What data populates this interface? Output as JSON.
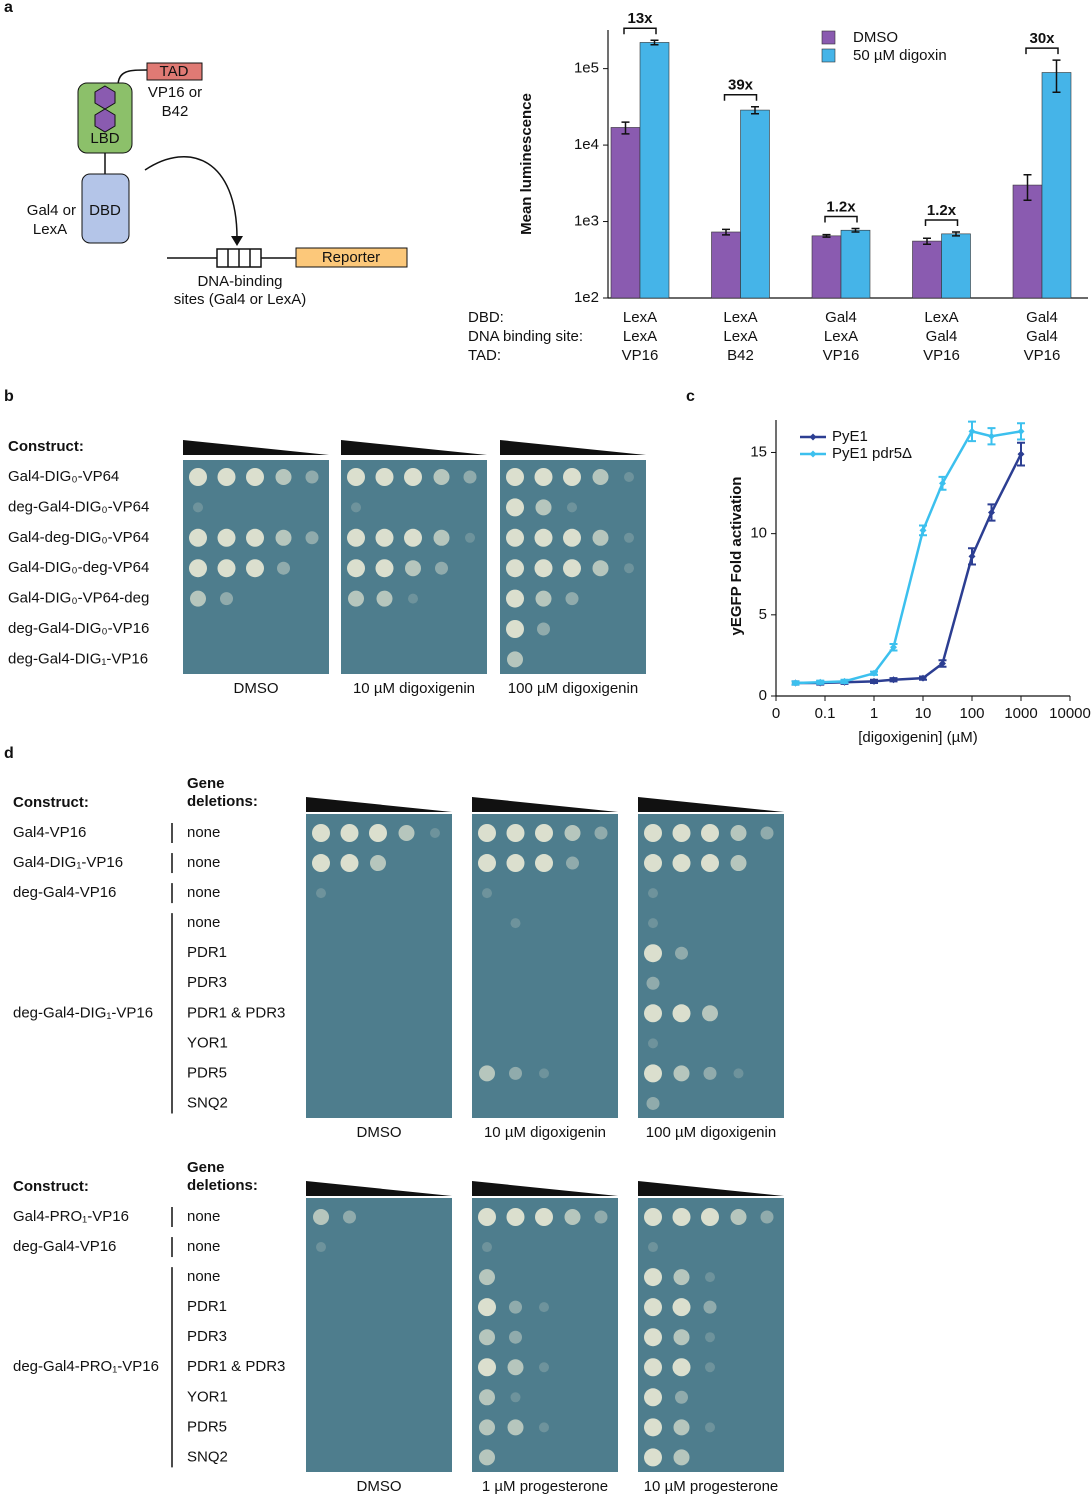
{
  "panel_a": {
    "letter": "a",
    "diagram": {
      "tad": "TAD",
      "tad_options": [
        "VP16 or",
        "B42"
      ],
      "lbd": "LBD",
      "dbd": "DBD",
      "dbd_options": [
        "Gal4 or",
        "LexA"
      ],
      "reporter": "Reporter",
      "sites": [
        "DNA-binding",
        "sites (Gal4 or LexA)"
      ]
    }
  },
  "chart_data": [
    {
      "type": "bar",
      "ylabel": "Mean luminescence",
      "yscale": "log",
      "ylim": [
        100,
        320000
      ],
      "yticks": [
        {
          "value": 100,
          "label": "1e2"
        },
        {
          "value": 1000,
          "label": "1e3"
        },
        {
          "value": 10000,
          "label": "1e4"
        },
        {
          "value": 100000,
          "label": "1e5"
        }
      ],
      "row_labels": [
        "DBD:",
        "DNA binding site:",
        "TAD:"
      ],
      "categories": [
        [
          "LexA",
          "LexA",
          "VP16"
        ],
        [
          "LexA",
          "LexA",
          "B42"
        ],
        [
          "Gal4",
          "LexA",
          "VP16"
        ],
        [
          "LexA",
          "Gal4",
          "VP16"
        ],
        [
          "Gal4",
          "Gal4",
          "VP16"
        ]
      ],
      "series": [
        {
          "name": "DMSO",
          "color": "#8a5bb0",
          "values": [
            17000,
            730,
            650,
            555,
            3000
          ],
          "errors": [
            3000,
            60,
            25,
            50,
            1100
          ]
        },
        {
          "name": "50 µM digoxin",
          "color": "#45b4e8",
          "values": [
            220000,
            28700,
            770,
            690,
            89000
          ],
          "errors": [
            15000,
            3000,
            40,
            40,
            40000
          ]
        }
      ],
      "fold_labels": [
        "13x",
        "39x",
        "1.2x",
        "1.2x",
        "30x"
      ],
      "legend": "upper right"
    },
    {
      "type": "line",
      "letter": "c",
      "xlabel": "[digoxigenin] (µM)",
      "ylabel": "yEGFP Fold activation",
      "xscale": "log",
      "xlim": [
        0.01,
        10000
      ],
      "xticks": [
        {
          "value": 0.01,
          "label": "0"
        },
        0.1,
        1,
        10,
        100,
        1000,
        10000
      ],
      "ylim": [
        0,
        17
      ],
      "yticks": [
        0,
        5,
        10,
        15
      ],
      "x": [
        0.025,
        0.08,
        0.25,
        1,
        2.5,
        10,
        25,
        100,
        250,
        1000
      ],
      "series": [
        {
          "name": "PyE1",
          "color": "#2c3e92",
          "values": [
            0.8,
            0.8,
            0.85,
            0.9,
            1.0,
            1.1,
            2.0,
            8.6,
            11.3,
            14.9
          ],
          "errors": [
            0.1,
            0.1,
            0.1,
            0.1,
            0.1,
            0.1,
            0.2,
            0.5,
            0.5,
            0.7
          ]
        },
        {
          "name": "PyE1 pdr5Δ",
          "color": "#3cc0ee",
          "values": [
            0.8,
            0.85,
            0.9,
            1.4,
            3.0,
            10.2,
            13.1,
            16.3,
            16.0,
            16.3
          ],
          "errors": [
            0.1,
            0.1,
            0.1,
            0.1,
            0.2,
            0.3,
            0.4,
            0.6,
            0.5,
            0.5
          ]
        }
      ],
      "legend": "upper left"
    }
  ],
  "panel_b": {
    "letter": "b",
    "construct_header": "Construct:",
    "constructs": [
      "Gal4-DIG₀-VP64",
      "deg-Gal4-DIG₀-VP64",
      "Gal4-deg-DIG₀-VP64",
      "Gal4-DIG₀-deg-VP64",
      "Gal4-DIG₀-VP64-deg",
      "deg-Gal4-DIG₀-VP16",
      "deg-Gal4-DIG₁-VP16"
    ],
    "plates": [
      "DMSO",
      "10 µM digoxigenin",
      "100 µM digoxigenin"
    ]
  },
  "panel_d": {
    "letter": "d",
    "blocks": [
      {
        "construct_header": "Construct:",
        "deletion_header": [
          "Gene",
          "deletions:"
        ],
        "constructs": [
          {
            "name": "Gal4-VP16",
            "deletions": [
              "none"
            ]
          },
          {
            "name": "Gal4-DIG₁-VP16",
            "deletions": [
              "none"
            ]
          },
          {
            "name": "deg-Gal4-VP16",
            "deletions": [
              "none"
            ]
          },
          {
            "name": "deg-Gal4-DIG₁-VP16",
            "deletions": [
              "none",
              "PDR1",
              "PDR3",
              "PDR1 & PDR3",
              "YOR1",
              "PDR5",
              "SNQ2"
            ]
          }
        ],
        "plates": [
          "DMSO",
          "10 µM digoxigenin",
          "100 µM digoxigenin"
        ]
      },
      {
        "construct_header": "Construct:",
        "deletion_header": [
          "Gene",
          "deletions:"
        ],
        "constructs": [
          {
            "name": "Gal4-PRO₁-VP16",
            "deletions": [
              "none"
            ]
          },
          {
            "name": "deg-Gal4-VP16",
            "deletions": [
              "none"
            ]
          },
          {
            "name": "deg-Gal4-PRO₁-VP16",
            "deletions": [
              "none",
              "PDR1",
              "PDR3",
              "PDR1 & PDR3",
              "YOR1",
              "PDR5",
              "SNQ2"
            ]
          }
        ],
        "plates": [
          "DMSO",
          "1 µM progesterone",
          "10 µM progesterone"
        ]
      }
    ]
  }
}
